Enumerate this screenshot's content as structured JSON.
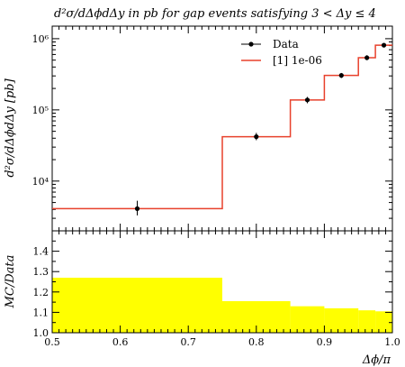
{
  "chart_data": [
    {
      "type": "line",
      "title": "d²σ/dΔϕdΔy in pb for gap events satisfying 3 < Δy ≤ 4",
      "ylabel": "d²σ/dΔϕdΔy [pb]",
      "xlabel": "",
      "xlim": [
        0.5,
        1.0
      ],
      "ylim": [
        2000,
        1500000
      ],
      "yscale": "log",
      "yticks": [
        "10⁴",
        "10⁵",
        "10⁶"
      ],
      "legend_position": "top-right",
      "series": [
        {
          "name": "Data",
          "style": "points-with-errorbars",
          "color": "#000000",
          "x": [
            0.625,
            0.8,
            0.875,
            0.925,
            0.9625,
            0.9875
          ],
          "y": [
            4100,
            42000,
            138000,
            305000,
            540000,
            810000
          ],
          "yerr_low": [
            3300,
            37500,
            124000,
            280000,
            500000,
            760000
          ],
          "yerr_high": [
            5300,
            47500,
            152000,
            330000,
            585000,
            860000
          ]
        },
        {
          "name": "[1] 1e-06",
          "style": "step",
          "color": "#e8412c",
          "bin_edges": [
            0.5,
            0.75,
            0.85,
            0.9,
            0.95,
            0.975,
            1.0
          ],
          "values": [
            4100,
            42000,
            138000,
            305000,
            540000,
            810000
          ]
        }
      ]
    },
    {
      "type": "area",
      "ylabel": "MC/Data",
      "xlabel": "Δϕ/π",
      "xlim": [
        0.5,
        1.0
      ],
      "ylim": [
        1.0,
        1.5
      ],
      "xticks": [
        "0.5",
        "0.6",
        "0.7",
        "0.8",
        "0.9",
        "1.0"
      ],
      "yticks": [
        "1.0",
        "1.1",
        "1.2",
        "1.3",
        "1.4"
      ],
      "fill_color": "#ffff00",
      "bin_edges": [
        0.5,
        0.75,
        0.85,
        0.9,
        0.95,
        0.975,
        1.0
      ],
      "values": [
        1.27,
        1.155,
        1.13,
        1.12,
        1.11,
        1.105
      ]
    }
  ]
}
